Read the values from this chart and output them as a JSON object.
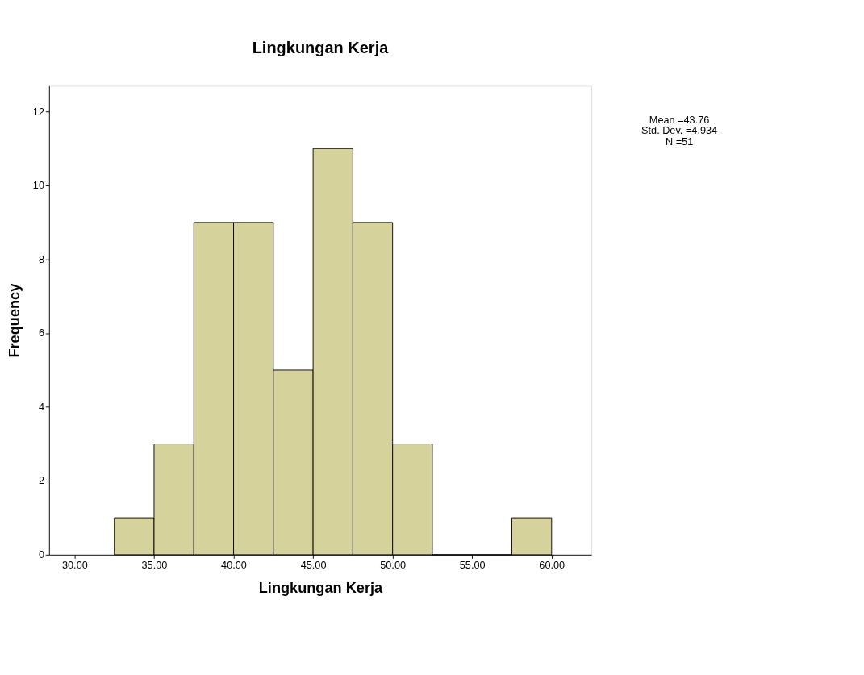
{
  "chart_data": {
    "type": "histogram",
    "title": "Lingkungan Kerja",
    "xlabel": "Lingkungan Kerja",
    "ylabel": "Frequency",
    "bins": [
      32.5,
      35,
      37.5,
      40,
      42.5,
      45,
      47.5,
      50,
      52.5,
      55,
      57.5,
      60
    ],
    "values": [
      1,
      3,
      9,
      9,
      5,
      11,
      9,
      3,
      0,
      0,
      1
    ],
    "color": "#d6d29c",
    "xlim": [
      28.4,
      62.5
    ],
    "ylim": [
      0,
      12.7
    ],
    "xticks": [
      {
        "value": 30,
        "label": "30.00"
      },
      {
        "value": 35,
        "label": "35.00"
      },
      {
        "value": 40,
        "label": "40.00"
      },
      {
        "value": 45,
        "label": "45.00"
      },
      {
        "value": 50,
        "label": "50.00"
      },
      {
        "value": 55,
        "label": "55.00"
      },
      {
        "value": 60,
        "label": "60.00"
      }
    ],
    "yticks": [
      0,
      2,
      4,
      6,
      8,
      10,
      12
    ],
    "grid": false,
    "annotations": [
      "Mean =43.76",
      "Std. Dev. =4.934",
      "N =51"
    ]
  }
}
